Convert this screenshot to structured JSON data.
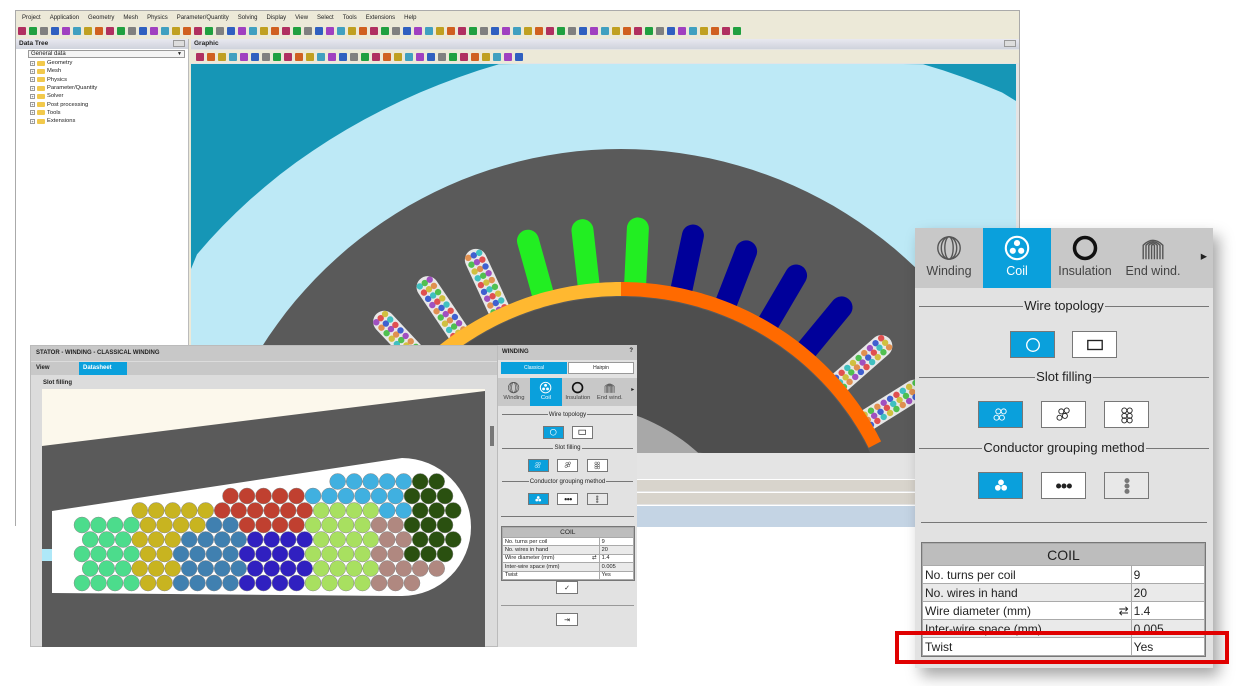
{
  "menu": [
    "Project",
    "Application",
    "Geometry",
    "Mesh",
    "Physics",
    "Parameter/Quantity",
    "Solving",
    "Display",
    "View",
    "Select",
    "Tools",
    "Extensions",
    "Help"
  ],
  "data_tree": {
    "title": "Data Tree",
    "dropdown": "General data",
    "items": [
      "Geometry",
      "Mesh",
      "Physics",
      "Parameter/Quantity",
      "Solver",
      "Post processing",
      "Tools",
      "Extensions"
    ]
  },
  "graphic": {
    "title": "Graphic"
  },
  "dialog": {
    "title": "STATOR - WINDING - CLASSICAL WINDING",
    "view_label": "View",
    "tab": "Datasheet",
    "section": "Slot filling"
  },
  "winding": {
    "title": "WINDING",
    "help": "?",
    "mode_classical": "Classical",
    "mode_hairpin": "Hairpin",
    "tabs": [
      {
        "label": "Winding",
        "icon": "winding-icon"
      },
      {
        "label": "Coil",
        "icon": "coil-icon",
        "selected": true
      },
      {
        "label": "Insulation",
        "icon": "insulation-icon"
      },
      {
        "label": "End wind.",
        "icon": "end-winding-icon"
      }
    ],
    "sections": {
      "wire_topology": "Wire topology",
      "slot_filling": "Slot filling",
      "grouping": "Conductor grouping method"
    },
    "table": {
      "title": "COIL",
      "rows": [
        {
          "label": "No. turns per coil",
          "value": "9"
        },
        {
          "label": "No. wires in hand",
          "value": "20"
        },
        {
          "label": "Wire diameter (mm)",
          "value": "1.4"
        },
        {
          "label": "Inter-wire space (mm)",
          "value": "0.005"
        },
        {
          "label": "Twist",
          "value": "Yes"
        }
      ]
    }
  },
  "colors": {
    "accent": "#0aa0dc",
    "highlight": "#e00000",
    "stator": "#5a5a5a",
    "background": "#bde9f6"
  }
}
